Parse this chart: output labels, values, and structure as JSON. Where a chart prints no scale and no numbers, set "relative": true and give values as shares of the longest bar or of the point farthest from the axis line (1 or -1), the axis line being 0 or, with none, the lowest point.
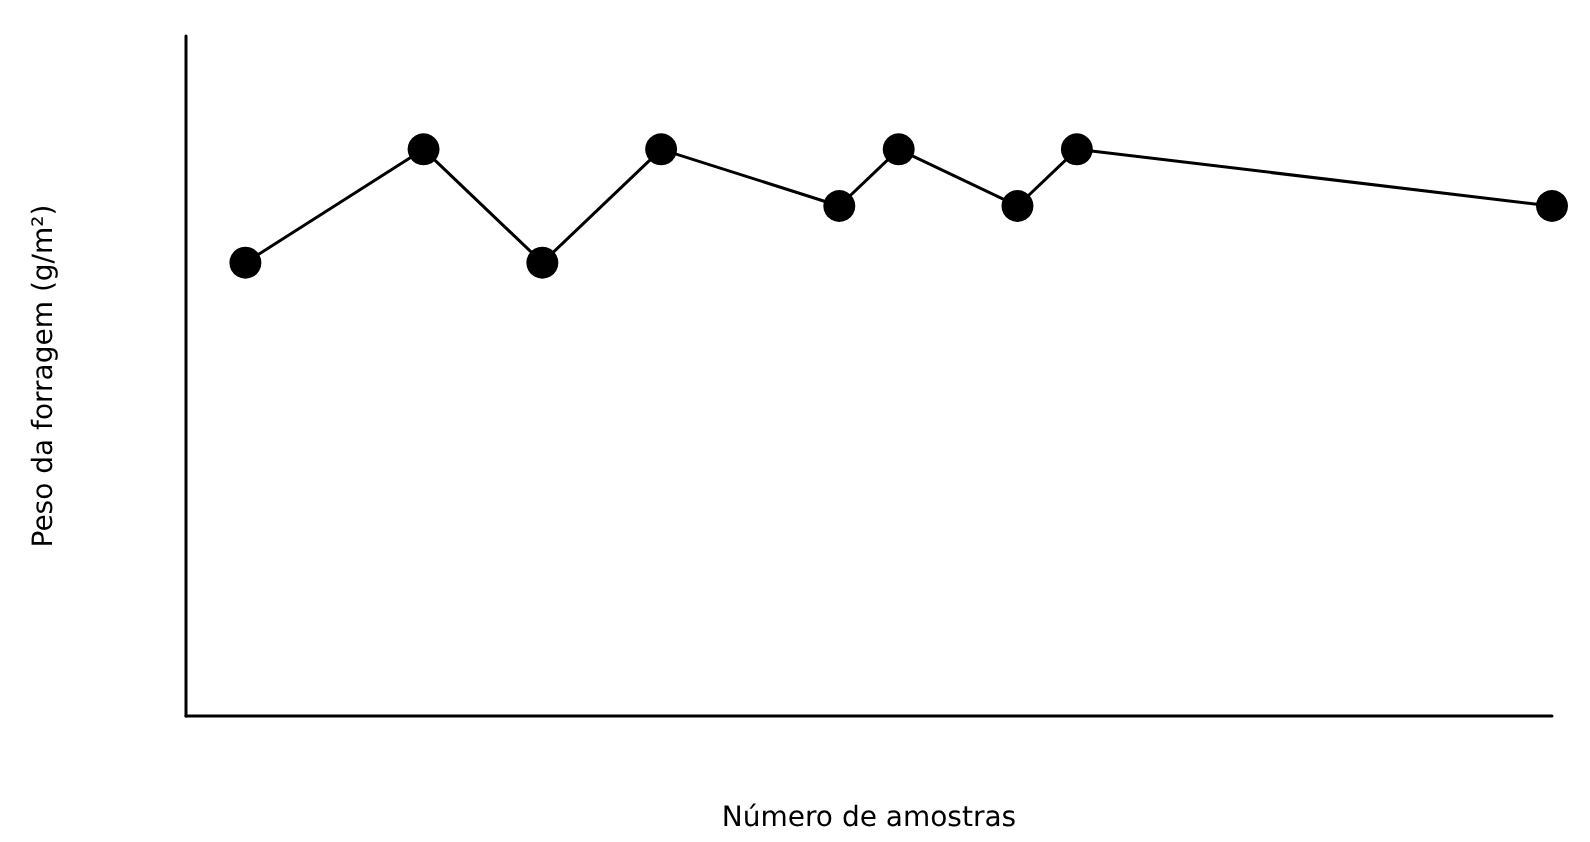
{
  "chart_data": {
    "type": "line",
    "relative": true,
    "xlabel": "Número de amostras",
    "ylabel": "Peso da forragem (g/m²)",
    "categories": [
      null,
      null,
      null,
      null,
      null,
      null,
      null,
      null,
      null,
      null,
      null,
      null,
      null,
      null,
      null,
      null,
      null,
      null,
      null,
      null,
      null,
      null,
      null,
      null
    ],
    "values": [
      null,
      0.8,
      null,
      null,
      1,
      null,
      0.8,
      null,
      1,
      null,
      null,
      0.9,
      1,
      null,
      0.9,
      1,
      null,
      null,
      null,
      null,
      null,
      null,
      null,
      0.9
    ],
    "color": "#000000",
    "marker": "circle",
    "line_style": "solid"
  }
}
